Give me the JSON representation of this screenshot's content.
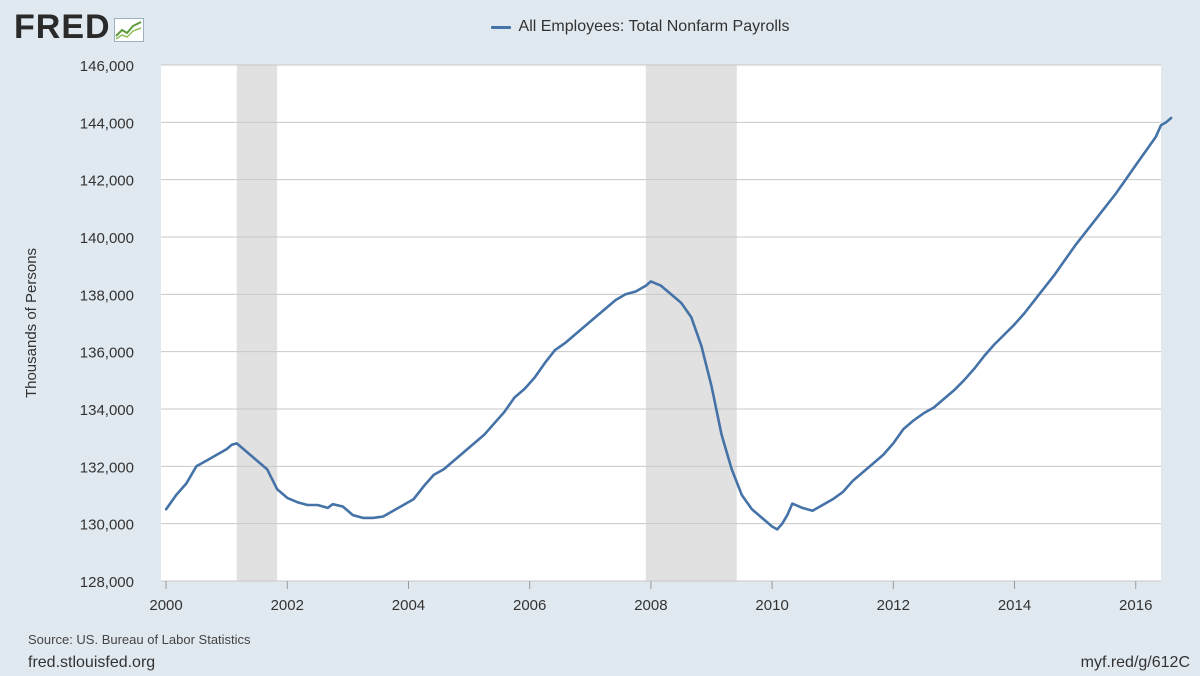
{
  "header": {
    "logo_text": "FRED",
    "logo_icon": "trend-graph-icon"
  },
  "footer": {
    "source": "Source: US. Bureau of Labor Statistics",
    "site": "fred.stlouisfed.org",
    "shortlink": "myf.red/g/612C"
  },
  "colors": {
    "series": "#4572a7",
    "recession": "#e1e1e1",
    "grid": "#c8c8c8",
    "plot_bg": "#ffffff",
    "page_bg": "#e1e9f0"
  },
  "chart_data": {
    "type": "line",
    "legend": "All Employees: Total Nonfarm Payrolls",
    "ylabel": "Thousands of Persons",
    "xlabel": "",
    "ylim": [
      128000,
      146000
    ],
    "xlim": [
      "1999-12",
      "2016-06"
    ],
    "yticks": [
      128000,
      130000,
      132000,
      134000,
      136000,
      138000,
      140000,
      142000,
      144000,
      146000
    ],
    "ytick_labels": [
      "128,000",
      "130,000",
      "132,000",
      "134,000",
      "136,000",
      "138,000",
      "140,000",
      "142,000",
      "144,000",
      "146,000"
    ],
    "xticks": [
      2000,
      2002,
      2004,
      2006,
      2008,
      2010,
      2012,
      2014,
      2016
    ],
    "xtick_labels": [
      "2000",
      "2002",
      "2004",
      "2006",
      "2008",
      "2010",
      "2012",
      "2014",
      "2016"
    ],
    "grid": true,
    "legend_position": "top-center",
    "recessions": [
      {
        "start": "2001-03",
        "end": "2001-11"
      },
      {
        "start": "2007-12",
        "end": "2009-06"
      }
    ],
    "series": [
      {
        "name": "All Employees: Total Nonfarm Payrolls",
        "points": [
          [
            "2000-01",
            130500
          ],
          [
            "2000-03",
            131000
          ],
          [
            "2000-05",
            131400
          ],
          [
            "2000-07",
            132000
          ],
          [
            "2000-09",
            132200
          ],
          [
            "2000-11",
            132400
          ],
          [
            "2001-01",
            132600
          ],
          [
            "2001-02",
            132750
          ],
          [
            "2001-03",
            132800
          ],
          [
            "2001-05",
            132500
          ],
          [
            "2001-07",
            132200
          ],
          [
            "2001-09",
            131900
          ],
          [
            "2001-11",
            131200
          ],
          [
            "2002-01",
            130900
          ],
          [
            "2002-03",
            130750
          ],
          [
            "2002-05",
            130650
          ],
          [
            "2002-07",
            130650
          ],
          [
            "2002-09",
            130550
          ],
          [
            "2002-10",
            130680
          ],
          [
            "2002-12",
            130600
          ],
          [
            "2003-02",
            130300
          ],
          [
            "2003-04",
            130200
          ],
          [
            "2003-06",
            130200
          ],
          [
            "2003-08",
            130250
          ],
          [
            "2003-10",
            130450
          ],
          [
            "2003-12",
            130650
          ],
          [
            "2004-02",
            130850
          ],
          [
            "2004-04",
            131300
          ],
          [
            "2004-06",
            131700
          ],
          [
            "2004-08",
            131900
          ],
          [
            "2004-10",
            132200
          ],
          [
            "2004-12",
            132500
          ],
          [
            "2005-02",
            132800
          ],
          [
            "2005-04",
            133100
          ],
          [
            "2005-06",
            133500
          ],
          [
            "2005-08",
            133900
          ],
          [
            "2005-10",
            134400
          ],
          [
            "2005-12",
            134700
          ],
          [
            "2006-02",
            135100
          ],
          [
            "2006-04",
            135600
          ],
          [
            "2006-06",
            136050
          ],
          [
            "2006-08",
            136300
          ],
          [
            "2006-10",
            136600
          ],
          [
            "2006-12",
            136900
          ],
          [
            "2007-02",
            137200
          ],
          [
            "2007-04",
            137500
          ],
          [
            "2007-06",
            137800
          ],
          [
            "2007-08",
            138000
          ],
          [
            "2007-10",
            138100
          ],
          [
            "2007-12",
            138300
          ],
          [
            "2008-01",
            138450
          ],
          [
            "2008-03",
            138300
          ],
          [
            "2008-05",
            138000
          ],
          [
            "2008-07",
            137700
          ],
          [
            "2008-09",
            137200
          ],
          [
            "2008-11",
            136200
          ],
          [
            "2009-01",
            134800
          ],
          [
            "2009-03",
            133100
          ],
          [
            "2009-05",
            131900
          ],
          [
            "2009-07",
            131000
          ],
          [
            "2009-09",
            130500
          ],
          [
            "2009-11",
            130200
          ],
          [
            "2010-01",
            129900
          ],
          [
            "2010-02",
            129800
          ],
          [
            "2010-03",
            130000
          ],
          [
            "2010-04",
            130300
          ],
          [
            "2010-05",
            130700
          ],
          [
            "2010-07",
            130550
          ],
          [
            "2010-09",
            130450
          ],
          [
            "2010-11",
            130650
          ],
          [
            "2011-01",
            130850
          ],
          [
            "2011-03",
            131100
          ],
          [
            "2011-05",
            131500
          ],
          [
            "2011-07",
            131800
          ],
          [
            "2011-09",
            132100
          ],
          [
            "2011-11",
            132400
          ],
          [
            "2012-01",
            132800
          ],
          [
            "2012-03",
            133300
          ],
          [
            "2012-05",
            133600
          ],
          [
            "2012-07",
            133850
          ],
          [
            "2012-09",
            134050
          ],
          [
            "2012-11",
            134350
          ],
          [
            "2013-01",
            134650
          ],
          [
            "2013-03",
            135000
          ],
          [
            "2013-05",
            135400
          ],
          [
            "2013-07",
            135850
          ],
          [
            "2013-09",
            136250
          ],
          [
            "2013-11",
            136600
          ],
          [
            "2014-01",
            136950
          ],
          [
            "2014-03",
            137350
          ],
          [
            "2014-05",
            137800
          ],
          [
            "2014-07",
            138250
          ],
          [
            "2014-09",
            138700
          ],
          [
            "2014-11",
            139200
          ],
          [
            "2015-01",
            139700
          ],
          [
            "2015-03",
            140150
          ],
          [
            "2015-05",
            140600
          ],
          [
            "2015-07",
            141050
          ],
          [
            "2015-09",
            141500
          ],
          [
            "2015-11",
            142000
          ],
          [
            "2016-01",
            142500
          ],
          [
            "2016-03",
            143000
          ],
          [
            "2016-05",
            143500
          ],
          [
            "2016-06",
            143900
          ],
          [
            "2016-07",
            144000
          ],
          [
            "2016-08",
            144150
          ]
        ]
      }
    ]
  }
}
